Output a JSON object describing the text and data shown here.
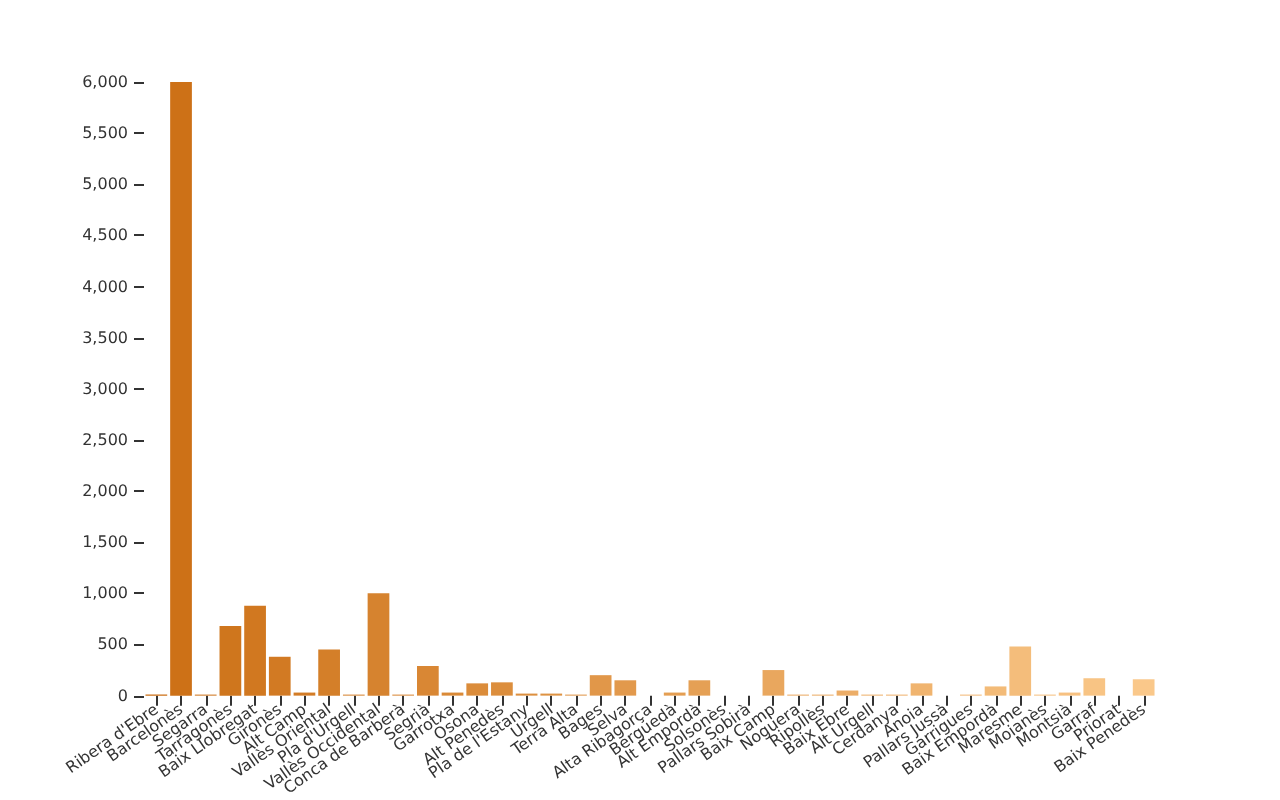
{
  "chart_data": {
    "type": "bar",
    "categories": [
      "Ribera d'Ebre",
      "Barcelonès",
      "Segarra",
      "Tarragonès",
      "Baix Llobregat",
      "Gironès",
      "Alt Camp",
      "Vallès Oriental",
      "Pla d'Urgell",
      "Vallès Occidental",
      "Conca de Barberà",
      "Segrià",
      "Garrotxa",
      "Osona",
      "Alt Penedès",
      "Pla de l'Estany",
      "Urgell",
      "Terra Alta",
      "Bages",
      "Selva",
      "Alta Ribagorça",
      "Berguedà",
      "Alt Empordà",
      "Solsonès",
      "Pallars Sobirà",
      "Baix Camp",
      "Noguera",
      "Ripollès",
      "Baix Ebre",
      "Alt Urgell",
      "Cerdanya",
      "Anoia",
      "Pallars Jussà",
      "Garrigues",
      "Baix Empordà",
      "Maresme",
      "Moianès",
      "Montsià",
      "Garraf",
      "Priorat",
      "Baix Penedès"
    ],
    "values": [
      10,
      6000,
      10,
      680,
      880,
      380,
      30,
      450,
      10,
      1000,
      10,
      290,
      30,
      120,
      130,
      20,
      20,
      10,
      200,
      150,
      0,
      30,
      150,
      0,
      0,
      250,
      10,
      10,
      50,
      10,
      10,
      120,
      0,
      10,
      90,
      480,
      10,
      30,
      170,
      0,
      160
    ],
    "colors": [
      "#cc6f14",
      "#cd7117",
      "#ce731a",
      "#cf761d",
      "#d17820",
      "#d27a23",
      "#d37c26",
      "#d47f29",
      "#d5812c",
      "#d6832f",
      "#d88532",
      "#d98734",
      "#da8a37",
      "#db8c3a",
      "#dc8e3d",
      "#dd9040",
      "#de9343",
      "#e09546",
      "#e19749",
      "#e2994c",
      "#e39c4f",
      "#e49e52",
      "#e5a055",
      "#e6a258",
      "#e8a45b",
      "#e9a75e",
      "#eaa961",
      "#ebab64",
      "#ecad67",
      "#edb06a",
      "#efb26d",
      "#f0b46f",
      "#f1b672",
      "#f2b875",
      "#f3bb78",
      "#f4bd7b",
      "#f5bf7e",
      "#f7c181",
      "#f8c484",
      "#f9c687",
      "#fac88a"
    ],
    "ylim": [
      0,
      6000
    ],
    "yticks": [
      {
        "value": 0,
        "label": "0"
      },
      {
        "value": 500,
        "label": "500"
      },
      {
        "value": 1000,
        "label": "1,000"
      },
      {
        "value": 1500,
        "label": "1,500"
      },
      {
        "value": 2000,
        "label": "2,000"
      },
      {
        "value": 2500,
        "label": "2,500"
      },
      {
        "value": 3000,
        "label": "3,000"
      },
      {
        "value": 3500,
        "label": "3,500"
      },
      {
        "value": 4000,
        "label": "4,000"
      },
      {
        "value": 4500,
        "label": "4,500"
      },
      {
        "value": 5000,
        "label": "5,000"
      },
      {
        "value": 5500,
        "label": "5,500"
      },
      {
        "value": 6000,
        "label": "6,000"
      }
    ],
    "grid": false
  }
}
